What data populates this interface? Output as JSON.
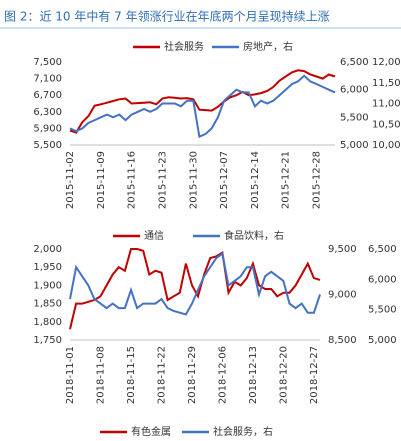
{
  "title": "图 2：近 10 年中有 7 年领涨行业在年底两个月呈现持续上涨",
  "chart_data": [
    {
      "type": "line",
      "categories": [
        "2015-11-02",
        null,
        null,
        null,
        null,
        "2015-11-09",
        null,
        null,
        null,
        null,
        "2015-11-16",
        null,
        null,
        null,
        null,
        "2015-11-23",
        null,
        null,
        null,
        null,
        "2015-11-30",
        null,
        null,
        null,
        null,
        "2015-12-07",
        null,
        null,
        null,
        null,
        "2015-12-14",
        null,
        null,
        null,
        null,
        "2015-12-21",
        null,
        null,
        null,
        null,
        "2015-12-28",
        null,
        null,
        null
      ],
      "series": [
        {
          "name": "社会服务",
          "color": "#c00000",
          "values": [
            5850,
            5800,
            6050,
            6200,
            6450,
            6480,
            6520,
            6560,
            6600,
            6620,
            6500,
            6510,
            6520,
            6530,
            6480,
            6620,
            6650,
            6640,
            6620,
            6630,
            6600,
            6350,
            6340,
            6330,
            6420,
            6550,
            6650,
            6700,
            6780,
            6700,
            6720,
            6750,
            6800,
            6900,
            7050,
            7150,
            7250,
            7300,
            7280,
            7200,
            7150,
            7100,
            7200,
            7150
          ]
        },
        {
          "name": "房地产，右",
          "color": "#4472c4",
          "axis": "y2",
          "values": [
            5300,
            5250,
            5300,
            5400,
            5450,
            5500,
            5550,
            5500,
            5550,
            5450,
            5550,
            5600,
            5650,
            5600,
            5650,
            5750,
            5750,
            5750,
            5700,
            5800,
            5800,
            5150,
            5200,
            5300,
            5500,
            5800,
            5900,
            6000,
            5950,
            5950,
            5700,
            5800,
            5750,
            5800,
            5900,
            6000,
            6100,
            6150,
            6250,
            6150,
            6100,
            6050,
            6000,
            5950
          ]
        }
      ],
      "ylim": [
        5500,
        7500
      ],
      "yticks": [
        {
          "value": 5500,
          "label": "5,500"
        },
        {
          "value": 5900,
          "label": "5,900"
        },
        {
          "value": 6300,
          "label": "6,300"
        },
        {
          "value": 6700,
          "label": "6,700"
        },
        {
          "value": 7100,
          "label": "7,100"
        },
        {
          "value": 7500,
          "label": "7,500"
        }
      ],
      "y2lim": [
        5000,
        6500
      ],
      "y2ticks": [
        {
          "value": 5000,
          "label": "5,000"
        },
        {
          "value": 5500,
          "label": "5,500"
        },
        {
          "value": 6000,
          "label": "6,000"
        },
        {
          "value": 6500,
          "label": "6,500"
        }
      ],
      "y3lim": [
        10000,
        12000
      ],
      "y3ticks": [
        {
          "value": 10000,
          "label": "10,000"
        },
        {
          "value": 10500,
          "label": "10,500"
        },
        {
          "value": 11000,
          "label": "11,000"
        },
        {
          "value": 11500,
          "label": "11,500"
        },
        {
          "value": 12000,
          "label": "12,000"
        }
      ]
    },
    {
      "type": "line",
      "categories": [
        "2018-11-01",
        null,
        null,
        null,
        null,
        "2018-11-08",
        null,
        null,
        null,
        null,
        "2018-11-15",
        null,
        null,
        null,
        null,
        "2018-11-22",
        null,
        null,
        null,
        null,
        "2018-11-29",
        null,
        null,
        null,
        null,
        "2018-12-06",
        null,
        null,
        null,
        null,
        "2018-12-13",
        null,
        null,
        null,
        null,
        "2018-12-20",
        null,
        null,
        null,
        null,
        "2018-12-27",
        null
      ],
      "series": [
        {
          "name": "通信",
          "color": "#c00000",
          "values": [
            1780,
            1850,
            1850,
            1855,
            1860,
            1870,
            1900,
            1930,
            1950,
            1940,
            2000,
            2000,
            1995,
            1930,
            1940,
            1935,
            1860,
            1870,
            1880,
            1960,
            1900,
            1870,
            1930,
            1975,
            1980,
            1990,
            1880,
            1910,
            1900,
            1920,
            1960,
            1900,
            1890,
            1890,
            1870,
            1880,
            1880,
            1900,
            1930,
            1960,
            1920,
            1915
          ]
        },
        {
          "name": "食品饮料，右",
          "color": "#4472c4",
          "axis": "y2",
          "values": [
            8950,
            9300,
            9200,
            9100,
            8950,
            8900,
            8850,
            8900,
            8850,
            8850,
            9050,
            8850,
            8900,
            8900,
            8900,
            8950,
            8850,
            8820,
            8800,
            8780,
            8900,
            9050,
            9200,
            9300,
            9400,
            9450,
            9100,
            9150,
            9200,
            9300,
            9300,
            9000,
            9200,
            9250,
            9200,
            9150,
            8900,
            8850,
            8900,
            8800,
            8800,
            9000
          ]
        }
      ],
      "ylim": [
        1750,
        2000
      ],
      "yticks": [
        {
          "value": 1750,
          "label": "1,750"
        },
        {
          "value": 1800,
          "label": "1,800"
        },
        {
          "value": 1850,
          "label": "1,850"
        },
        {
          "value": 1900,
          "label": "1,900"
        },
        {
          "value": 1950,
          "label": "1,950"
        },
        {
          "value": 2000,
          "label": "2,000"
        }
      ],
      "y2lim": [
        8500,
        9500
      ],
      "y2ticks": [
        {
          "value": 8500,
          "label": "8,500"
        },
        {
          "value": 9000,
          "label": "9,000"
        },
        {
          "value": 9500,
          "label": "9,500"
        }
      ],
      "y3lim": [
        5000,
        6500
      ],
      "y3ticks": [
        {
          "value": 5000,
          "label": "5,000"
        },
        {
          "value": 5500,
          "label": "5,500"
        },
        {
          "value": 6000,
          "label": "6,000"
        },
        {
          "value": 6500,
          "label": "6,500"
        }
      ]
    },
    {
      "type": "line",
      "series": [
        {
          "name": "有色金属",
          "color": "#c00000"
        },
        {
          "name": "社会服务，右",
          "color": "#4472c4",
          "axis": "y2"
        }
      ]
    }
  ]
}
